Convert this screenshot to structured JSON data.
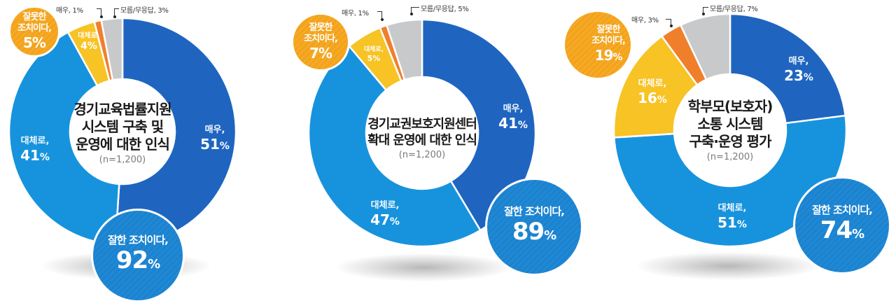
{
  "colors": {
    "very_positive": "#1f65c0",
    "somewhat_positive": "#1793dd",
    "somewhat_negative": "#f7c325",
    "very_negative": "#f07f2c",
    "unknown": "#c8c9cb",
    "good_bubble": "#1b82cf",
    "bad_bubble": "#f2a21c"
  },
  "charts": [
    {
      "title_lines": [
        "경기교육법률지원",
        "시스템 구축 및",
        "운영에 대한 인식"
      ],
      "sample": "(n=1,200)",
      "segments": {
        "very_positive": {
          "label": "매우,",
          "value": "51",
          "pct": "%"
        },
        "somewhat_positive": {
          "label": "대체로,",
          "value": "41",
          "pct": "%"
        },
        "somewhat_negative": {
          "label": "대체로,",
          "value": "4%"
        },
        "very_negative": {
          "label": "매우, 1%"
        },
        "unknown": {
          "label": "모름/무응답, 3%"
        }
      },
      "good": {
        "label": "잘한 조치이다,",
        "value": "92",
        "pct": "%"
      },
      "bad": {
        "label1": "잘못한",
        "label2": "조치이다,",
        "value": "5%"
      }
    },
    {
      "title_lines": [
        "경기교권보호지원센터",
        "확대 운영에 대한 인식"
      ],
      "sample": "(n=1,200)",
      "segments": {
        "very_positive": {
          "label": "매우,",
          "value": "41",
          "pct": "%"
        },
        "somewhat_positive": {
          "label": "대체로,",
          "value": "47",
          "pct": "%"
        },
        "somewhat_negative": {
          "label": "대체로,",
          "value": "5%"
        },
        "very_negative": {
          "label": "매우, 1%"
        },
        "unknown": {
          "label": "모름/무응답, 5%"
        }
      },
      "good": {
        "label": "잘한 조치이다,",
        "value": "89",
        "pct": "%"
      },
      "bad": {
        "label1": "잘못한",
        "label2": "조치이다,",
        "value": "7%"
      }
    },
    {
      "title_lines": [
        "학부모(보호자)",
        "소통 시스템",
        "구축·운영 평가"
      ],
      "sample": "(n=1,200)",
      "segments": {
        "very_positive": {
          "label": "매우,",
          "value": "23",
          "pct": "%"
        },
        "somewhat_positive": {
          "label": "대체로,",
          "value": "51",
          "pct": "%"
        },
        "somewhat_negative": {
          "label": "대체로,",
          "value": "16",
          "pct": "%"
        },
        "very_negative": {
          "label": "매우, 3%"
        },
        "unknown": {
          "label": "모름/무응답, 7%"
        }
      },
      "good": {
        "label": "잘한 조치이다,",
        "value": "74",
        "pct": "%"
      },
      "bad": {
        "label1": "잘못한",
        "label2": "조치이다,",
        "value": "19",
        "pct": "%"
      }
    }
  ],
  "chart_data": [
    {
      "type": "pie",
      "subtype": "donut",
      "title": "경기교육법률지원 시스템 구축 및 운영에 대한 인식",
      "sample_size": "n=1,200",
      "categories": [
        "잘한 조치이다 - 매우",
        "잘한 조치이다 - 대체로",
        "잘못한 조치이다 - 대체로",
        "잘못한 조치이다 - 매우",
        "모름/무응답"
      ],
      "values": [
        51,
        41,
        4,
        1,
        3
      ],
      "groups": {
        "잘한 조치이다": 92,
        "잘못한 조치이다": 5,
        "모름/무응답": 3
      },
      "order": "clockwise from 12 o'clock"
    },
    {
      "type": "pie",
      "subtype": "donut",
      "title": "경기교권보호지원센터 확대 운영에 대한 인식",
      "sample_size": "n=1,200",
      "categories": [
        "잘한 조치이다 - 매우",
        "잘한 조치이다 - 대체로",
        "잘못한 조치이다 - 대체로",
        "잘못한 조치이다 - 매우",
        "모름/무응답"
      ],
      "values": [
        41,
        47,
        5,
        1,
        5
      ],
      "groups": {
        "잘한 조치이다": 89,
        "잘못한 조치이다": 7,
        "모름/무응답": 5
      },
      "order": "clockwise from 12 o'clock"
    },
    {
      "type": "pie",
      "subtype": "donut",
      "title": "학부모(보호자) 소통 시스템 구축·운영 평가",
      "sample_size": "n=1,200",
      "categories": [
        "잘한 조치이다 - 매우",
        "잘한 조치이다 - 대체로",
        "잘못한 조치이다 - 대체로",
        "잘못한 조치이다 - 매우",
        "모름/무응답"
      ],
      "values": [
        23,
        51,
        16,
        3,
        7
      ],
      "groups": {
        "잘한 조치이다": 74,
        "잘못한 조치이다": 19,
        "모름/무응답": 7
      },
      "order": "clockwise from 12 o'clock"
    }
  ]
}
